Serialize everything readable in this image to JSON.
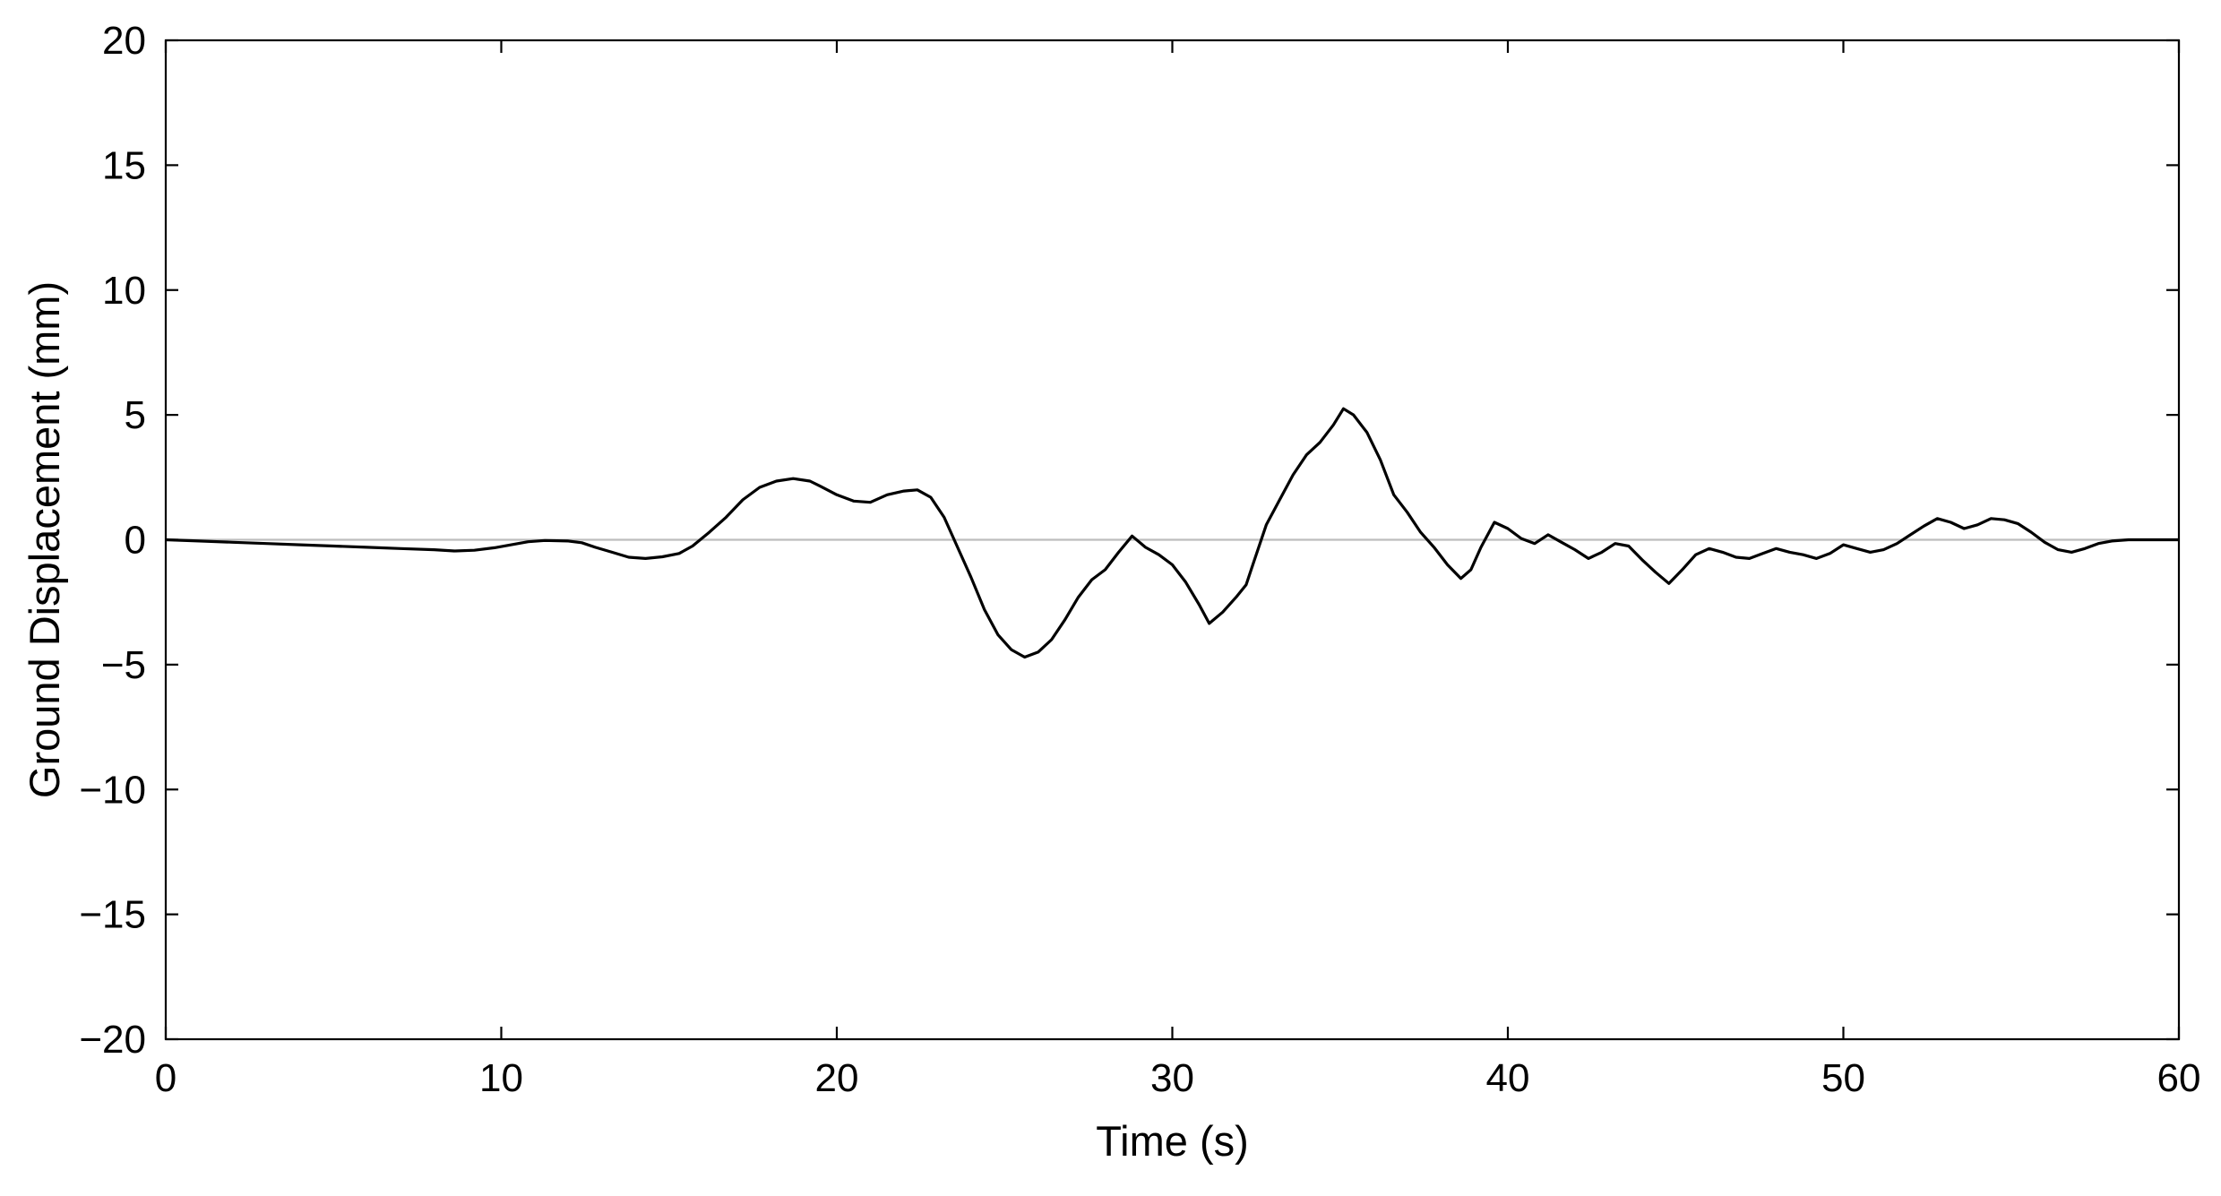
{
  "chart_data": {
    "type": "line",
    "title": "",
    "xlabel": "Time (s)",
    "ylabel": "Ground Displacement (mm)",
    "xlim": [
      0,
      60
    ],
    "ylim": [
      -20,
      20
    ],
    "x_ticks": [
      0,
      10,
      20,
      30,
      40,
      50,
      60
    ],
    "x_tick_labels": [
      "0",
      "10",
      "20",
      "30",
      "40",
      "50",
      "60"
    ],
    "y_ticks": [
      20,
      15,
      10,
      5,
      0,
      -5,
      -10,
      -15,
      -20
    ],
    "y_tick_labels": [
      "20",
      "15",
      "10",
      "5",
      "0",
      "−5",
      "−10",
      "−15",
      "−20"
    ],
    "grid": false,
    "legend": "none",
    "zero_line": {
      "y": 0,
      "color": "#bdbdbd"
    },
    "series": [
      {
        "color": "#000000",
        "points": [
          [
            0,
            0
          ],
          [
            1,
            -0.05
          ],
          [
            2,
            -0.1
          ],
          [
            3,
            -0.15
          ],
          [
            4,
            -0.2
          ],
          [
            5,
            -0.25
          ],
          [
            6,
            -0.3
          ],
          [
            7,
            -0.35
          ],
          [
            8,
            -0.4
          ],
          [
            8.6,
            -0.45
          ],
          [
            9.2,
            -0.42
          ],
          [
            9.8,
            -0.32
          ],
          [
            10.3,
            -0.2
          ],
          [
            10.8,
            -0.08
          ],
          [
            11.3,
            -0.03
          ],
          [
            12,
            -0.05
          ],
          [
            12.4,
            -0.12
          ],
          [
            12.8,
            -0.3
          ],
          [
            13.3,
            -0.5
          ],
          [
            13.8,
            -0.7
          ],
          [
            14.3,
            -0.75
          ],
          [
            14.8,
            -0.68
          ],
          [
            15.3,
            -0.55
          ],
          [
            15.7,
            -0.25
          ],
          [
            16.2,
            0.3
          ],
          [
            16.7,
            0.9
          ],
          [
            17.2,
            1.6
          ],
          [
            17.7,
            2.1
          ],
          [
            18.2,
            2.35
          ],
          [
            18.7,
            2.45
          ],
          [
            19.2,
            2.35
          ],
          [
            19.5,
            2.15
          ],
          [
            20,
            1.8
          ],
          [
            20.5,
            1.55
          ],
          [
            21,
            1.5
          ],
          [
            21.5,
            1.8
          ],
          [
            22,
            1.95
          ],
          [
            22.4,
            2.0
          ],
          [
            22.8,
            1.7
          ],
          [
            23.2,
            0.9
          ],
          [
            23.6,
            -0.3
          ],
          [
            24,
            -1.5
          ],
          [
            24.4,
            -2.8
          ],
          [
            24.8,
            -3.8
          ],
          [
            25.2,
            -4.4
          ],
          [
            25.6,
            -4.7
          ],
          [
            26,
            -4.5
          ],
          [
            26.4,
            -4.0
          ],
          [
            26.8,
            -3.2
          ],
          [
            27.2,
            -2.3
          ],
          [
            27.6,
            -1.6
          ],
          [
            28,
            -1.2
          ],
          [
            28.4,
            -0.5
          ],
          [
            28.8,
            0.15
          ],
          [
            29.2,
            -0.3
          ],
          [
            29.6,
            -0.6
          ],
          [
            30,
            -1.0
          ],
          [
            30.4,
            -1.7
          ],
          [
            30.8,
            -2.6
          ],
          [
            31.1,
            -3.35
          ],
          [
            31.5,
            -2.9
          ],
          [
            31.9,
            -2.3
          ],
          [
            32.2,
            -1.8
          ],
          [
            32.5,
            -0.6
          ],
          [
            32.8,
            0.6
          ],
          [
            33.2,
            1.6
          ],
          [
            33.6,
            2.6
          ],
          [
            34,
            3.4
          ],
          [
            34.4,
            3.9
          ],
          [
            34.8,
            4.6
          ],
          [
            35.1,
            5.25
          ],
          [
            35.4,
            5.0
          ],
          [
            35.8,
            4.3
          ],
          [
            36.2,
            3.2
          ],
          [
            36.6,
            1.8
          ],
          [
            37,
            1.1
          ],
          [
            37.4,
            0.3
          ],
          [
            37.8,
            -0.3
          ],
          [
            38.2,
            -1.0
          ],
          [
            38.6,
            -1.55
          ],
          [
            38.9,
            -1.2
          ],
          [
            39.2,
            -0.3
          ],
          [
            39.6,
            0.7
          ],
          [
            40,
            0.45
          ],
          [
            40.4,
            0.05
          ],
          [
            40.8,
            -0.15
          ],
          [
            41.2,
            0.2
          ],
          [
            41.6,
            -0.1
          ],
          [
            42,
            -0.4
          ],
          [
            42.4,
            -0.75
          ],
          [
            42.8,
            -0.5
          ],
          [
            43.2,
            -0.15
          ],
          [
            43.6,
            -0.25
          ],
          [
            44,
            -0.8
          ],
          [
            44.4,
            -1.3
          ],
          [
            44.8,
            -1.75
          ],
          [
            45.2,
            -1.2
          ],
          [
            45.6,
            -0.6
          ],
          [
            46,
            -0.35
          ],
          [
            46.4,
            -0.5
          ],
          [
            46.8,
            -0.7
          ],
          [
            47.2,
            -0.75
          ],
          [
            47.6,
            -0.55
          ],
          [
            48,
            -0.35
          ],
          [
            48.4,
            -0.5
          ],
          [
            48.8,
            -0.6
          ],
          [
            49.2,
            -0.75
          ],
          [
            49.6,
            -0.55
          ],
          [
            50,
            -0.2
          ],
          [
            50.4,
            -0.35
          ],
          [
            50.8,
            -0.5
          ],
          [
            51.2,
            -0.4
          ],
          [
            51.6,
            -0.15
          ],
          [
            52,
            0.2
          ],
          [
            52.4,
            0.55
          ],
          [
            52.8,
            0.85
          ],
          [
            53.2,
            0.7
          ],
          [
            53.6,
            0.45
          ],
          [
            54,
            0.6
          ],
          [
            54.4,
            0.85
          ],
          [
            54.8,
            0.8
          ],
          [
            55.2,
            0.65
          ],
          [
            55.6,
            0.3
          ],
          [
            56,
            -0.1
          ],
          [
            56.4,
            -0.4
          ],
          [
            56.8,
            -0.5
          ],
          [
            57.2,
            -0.35
          ],
          [
            57.6,
            -0.15
          ],
          [
            58,
            -0.05
          ],
          [
            58.5,
            0
          ],
          [
            59,
            0
          ],
          [
            60,
            0
          ]
        ]
      }
    ]
  }
}
